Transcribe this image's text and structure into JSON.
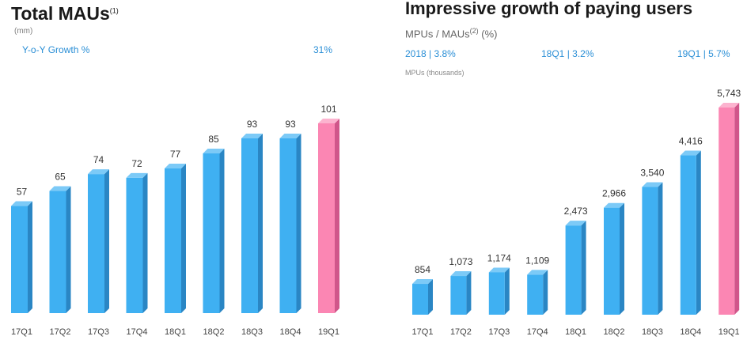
{
  "left": {
    "title": "Total MAUs",
    "title_note": "(1)",
    "unit": "(mm)",
    "growth_label": "Y-o-Y Growth %",
    "growth_value": "31%"
  },
  "right": {
    "title": "Impressive growth of paying users",
    "ratio_label_prefix": "MPUs / MAUs",
    "ratio_label_note": "(2)",
    "ratio_label_suffix": "(%)",
    "ratios": [
      "2018 | 3.8%",
      "18Q1 | 3.2%",
      "19Q1 | 5.7%"
    ],
    "unit": "MPUs (thousands)"
  },
  "colors": {
    "bar": "#3fb0f2",
    "bar_side": "#2a86c4",
    "bar_top": "#7ccaf7",
    "highlight": "#fb86b3",
    "highlight_side": "#d0568a",
    "highlight_top": "#fcb3cf",
    "accent_text": "#2b8fd6"
  },
  "chart_data": [
    {
      "type": "bar",
      "title": "Total MAUs",
      "ylabel": "(mm)",
      "categories": [
        "17Q1",
        "17Q2",
        "17Q3",
        "17Q4",
        "18Q1",
        "18Q2",
        "18Q3",
        "18Q4",
        "19Q1"
      ],
      "values": [
        57,
        65,
        74,
        72,
        77,
        85,
        93,
        93,
        101
      ],
      "value_labels": [
        "57",
        "65",
        "74",
        "72",
        "77",
        "85",
        "93",
        "93",
        "101"
      ],
      "highlight_index": 8,
      "ylim": [
        0,
        101
      ],
      "grid": false
    },
    {
      "type": "bar",
      "title": "Impressive growth of paying users",
      "ylabel": "MPUs (thousands)",
      "categories": [
        "17Q1",
        "17Q2",
        "17Q3",
        "17Q4",
        "18Q1",
        "18Q2",
        "18Q3",
        "18Q4",
        "19Q1"
      ],
      "values": [
        854,
        1073,
        1174,
        1109,
        2473,
        2966,
        3540,
        4416,
        5743
      ],
      "value_labels": [
        "854",
        "1,073",
        "1,174",
        "1,109",
        "2,473",
        "2,966",
        "3,540",
        "4,416",
        "5,743"
      ],
      "highlight_index": 8,
      "ylim": [
        0,
        5743
      ],
      "grid": false
    }
  ]
}
